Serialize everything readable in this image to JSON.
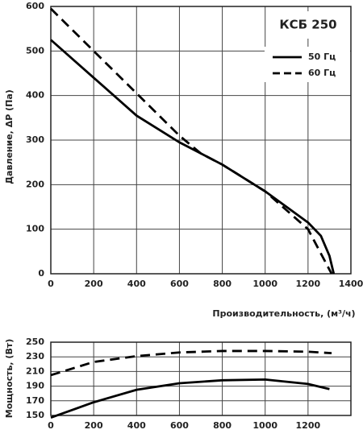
{
  "chart_data": [
    {
      "type": "line",
      "title": "КСБ 250",
      "xlabel": "Производительность, (м³/ч)",
      "ylabel": "Давление, ΔP (Па)",
      "xlim": [
        0,
        1400
      ],
      "xticks": [
        0,
        200,
        400,
        600,
        800,
        1000,
        1200,
        1400
      ],
      "ylim": [
        0,
        600
      ],
      "yticks": [
        0,
        100,
        200,
        300,
        400,
        500,
        600
      ],
      "grid": true,
      "legend": "upper right",
      "series": [
        {
          "name": "50 Гц",
          "color": "#000000",
          "style": "solid",
          "x": [
            0,
            200,
            400,
            600,
            800,
            1000,
            1200,
            1260,
            1300,
            1320
          ],
          "values": [
            525,
            440,
            355,
            295,
            245,
            185,
            115,
            85,
            40,
            0
          ]
        },
        {
          "name": "60 Гц",
          "color": "#000000",
          "style": "dashed",
          "x": [
            0,
            200,
            400,
            600,
            700,
            800,
            1000,
            1200,
            1310
          ],
          "values": [
            595,
            500,
            405,
            310,
            270,
            245,
            185,
            100,
            0
          ]
        }
      ]
    },
    {
      "type": "line",
      "ylabel": "Мощность, (Вт)",
      "xlim": [
        0,
        1400
      ],
      "xticks": [
        0,
        200,
        400,
        600,
        800,
        1000,
        1200
      ],
      "ylim": [
        150,
        250
      ],
      "yticks": [
        150,
        170,
        190,
        210,
        230,
        250
      ],
      "grid": true,
      "series": [
        {
          "color": "#000000",
          "style": "solid",
          "x": [
            0,
            200,
            400,
            600,
            800,
            1000,
            1200,
            1300
          ],
          "values": [
            147,
            168,
            185,
            194,
            198,
            199,
            193,
            186
          ]
        },
        {
          "color": "#000000",
          "style": "dashed",
          "x": [
            0,
            200,
            400,
            600,
            800,
            1000,
            1200,
            1310
          ],
          "values": [
            205,
            223,
            231,
            236,
            238,
            238,
            237,
            235
          ]
        }
      ]
    }
  ]
}
